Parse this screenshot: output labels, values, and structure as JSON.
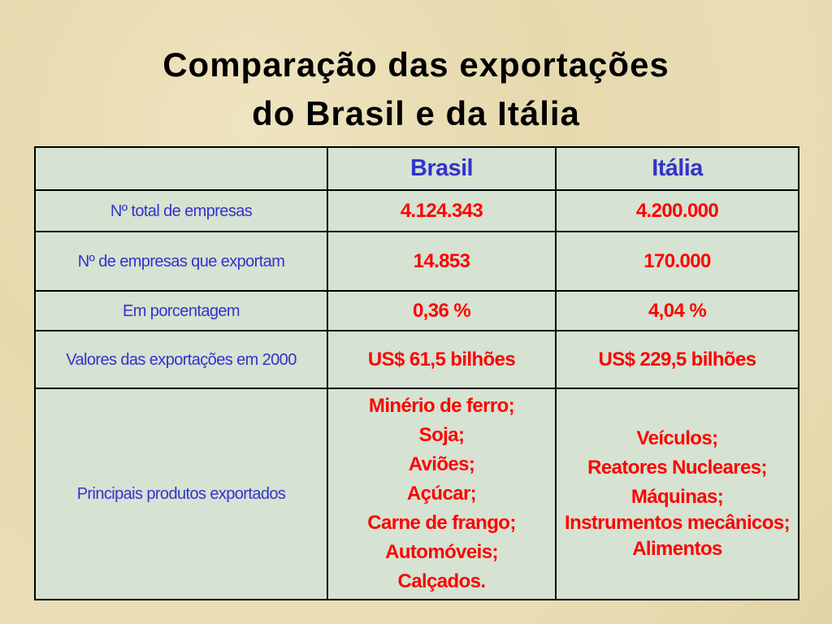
{
  "title": {
    "lines": [
      "Comparação das exportações",
      "do Brasil e da Itália"
    ]
  },
  "table": {
    "columns": [
      "Brasil",
      "Itália"
    ],
    "rows": [
      {
        "label": "Nº total de empresas",
        "cells": [
          "4.124.343",
          "4.200.000"
        ]
      },
      {
        "label": "Nº de empresas que exportam",
        "cells": [
          "14.853",
          "170.000"
        ]
      },
      {
        "label": "Em porcentagem",
        "cells": [
          "0,36 %",
          "4,04 %"
        ]
      },
      {
        "label": "Valores das exportações em 2000",
        "cells": [
          "US$ 61,5 bilhões",
          "US$ 229,5 bilhões"
        ]
      },
      {
        "label": "Principais produtos exportados",
        "cells": [
          [
            "Minério de ferro;",
            "Soja;",
            "Aviões;",
            "Açúcar;",
            "Carne de frango;",
            "Automóveis;",
            "Calçados."
          ],
          [
            "Veículos;",
            "Reatores Nucleares;",
            "Máquinas;",
            "Instrumentos mecânicos;",
            "Alimentos"
          ]
        ]
      }
    ]
  }
}
